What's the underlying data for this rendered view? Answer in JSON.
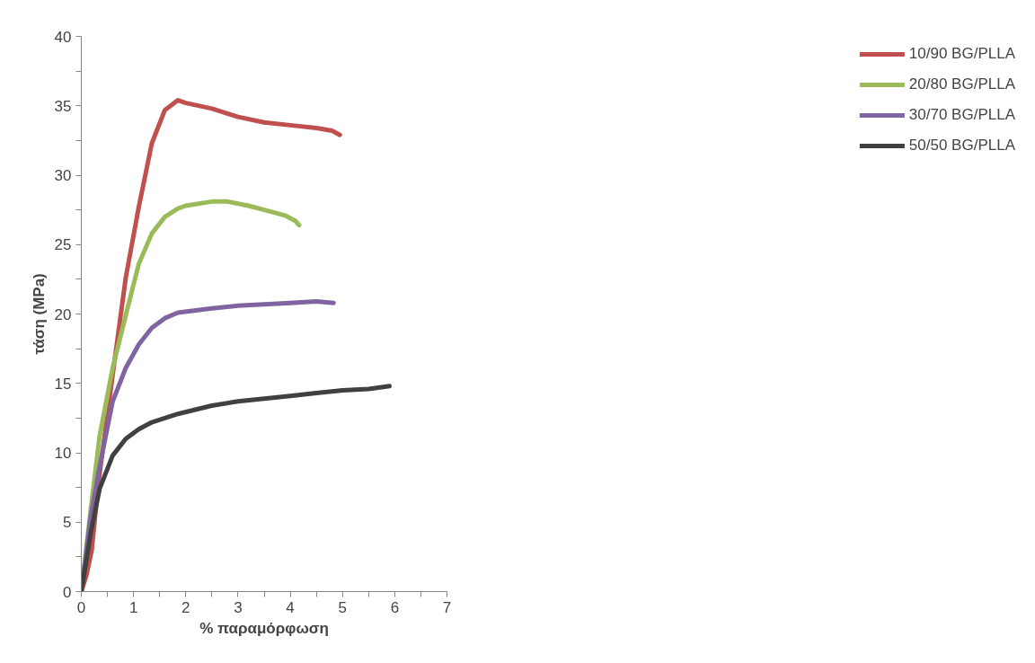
{
  "chart_data": {
    "type": "line",
    "xlabel": "% παραμόρφωση",
    "ylabel": "τάση (MPa)",
    "xlim": [
      0,
      7
    ],
    "ylim": [
      0,
      40
    ],
    "xticks": [
      0,
      {
        "value": 0.5,
        "label": null
      },
      1,
      {
        "value": 1.5,
        "label": null
      },
      2,
      {
        "value": 2.5,
        "label": null
      },
      3,
      {
        "value": 3.5,
        "label": null
      },
      4,
      {
        "value": 4.5,
        "label": null
      },
      5,
      {
        "value": 5.5,
        "label": null
      },
      6,
      {
        "value": 6.5,
        "label": null
      },
      7
    ],
    "yticks": [
      0,
      {
        "value": 2.5,
        "label": null
      },
      5,
      {
        "value": 7.5,
        "label": null
      },
      10,
      {
        "value": 12.5,
        "label": null
      },
      15,
      {
        "value": 17.5,
        "label": null
      },
      20,
      {
        "value": 22.5,
        "label": null
      },
      25,
      {
        "value": 27.5,
        "label": null
      },
      30,
      {
        "value": 32.5,
        "label": null
      },
      35,
      {
        "value": 37.5,
        "label": null
      },
      40
    ],
    "grid": false,
    "legend": "right",
    "marker": "none",
    "line_style": "solid",
    "series": [
      {
        "name": "10/90 BG/PLLA",
        "color": "#c0504d",
        "x": [
          0,
          0.1,
          0.2,
          0.33,
          0.6,
          0.85,
          1.1,
          1.35,
          1.6,
          1.85,
          2.0,
          2.5,
          3.0,
          3.5,
          4.0,
          4.5,
          4.8,
          4.95
        ],
        "values": [
          0,
          1.2,
          3.0,
          7.9,
          15.6,
          22.6,
          27.7,
          32.3,
          34.7,
          35.4,
          35.2,
          34.8,
          34.2,
          33.8,
          33.6,
          33.4,
          33.2,
          32.9
        ]
      },
      {
        "name": "20/80 BG/PLLA",
        "color": "#9bbb59",
        "x": [
          0,
          0.18,
          0.35,
          0.6,
          0.85,
          1.1,
          1.35,
          1.6,
          1.85,
          2.0,
          2.5,
          2.8,
          3.2,
          3.6,
          3.9,
          4.1,
          4.17
        ],
        "values": [
          0,
          5.9,
          11.2,
          16.1,
          19.9,
          23.6,
          25.8,
          27.0,
          27.6,
          27.8,
          28.1,
          28.1,
          27.8,
          27.4,
          27.1,
          26.7,
          26.4
        ]
      },
      {
        "name": "30/70 BG/PLLA",
        "color": "#8064a2",
        "x": [
          0,
          0.18,
          0.35,
          0.6,
          0.85,
          1.1,
          1.35,
          1.6,
          1.85,
          2.5,
          3.0,
          3.5,
          4.0,
          4.5,
          4.83
        ],
        "values": [
          0,
          5.4,
          9.0,
          13.7,
          16.1,
          17.8,
          19.0,
          19.7,
          20.1,
          20.4,
          20.6,
          20.7,
          20.8,
          20.9,
          20.8
        ]
      },
      {
        "name": "50/50 BG/PLLA",
        "color": "#404040",
        "x": [
          0,
          0.18,
          0.35,
          0.6,
          0.85,
          1.1,
          1.35,
          1.85,
          2.5,
          3.0,
          3.5,
          4.0,
          4.5,
          5.0,
          5.5,
          5.9
        ],
        "values": [
          0,
          4.2,
          7.4,
          9.8,
          11.0,
          11.7,
          12.2,
          12.8,
          13.4,
          13.7,
          13.9,
          14.1,
          14.3,
          14.5,
          14.6,
          14.8
        ]
      }
    ]
  }
}
